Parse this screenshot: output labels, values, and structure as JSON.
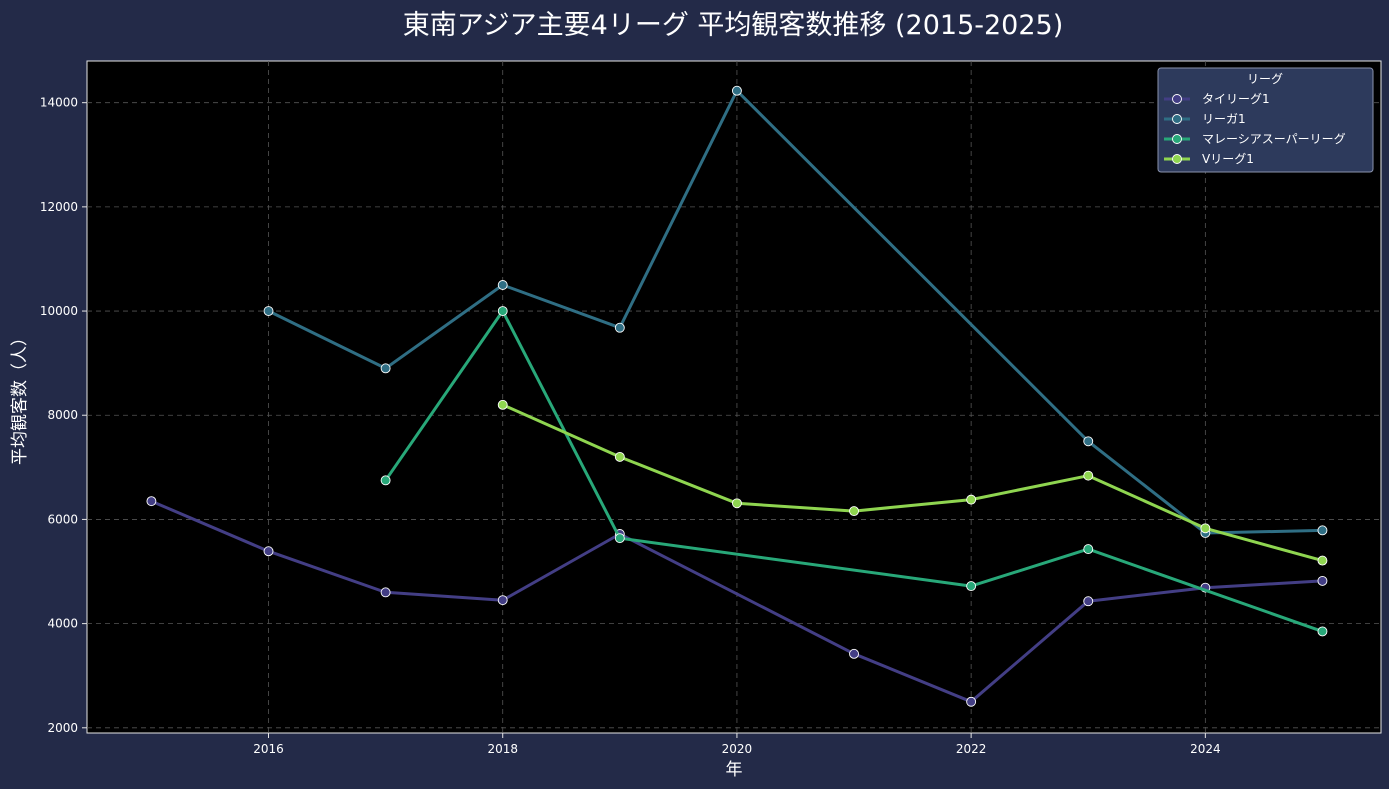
{
  "chart_data": {
    "type": "line",
    "title": "東南アジア主要4リーグ 平均観客数推移 (2015-2025)",
    "xlabel": "年",
    "ylabel": "平均観客数（人）",
    "xlim": [
      2014.45,
      2025.5
    ],
    "ylim": [
      1900,
      14800
    ],
    "xticks": [
      2016,
      2018,
      2020,
      2022,
      2024
    ],
    "yticks": [
      2000,
      4000,
      6000,
      8000,
      10000,
      12000,
      14000
    ],
    "grid": true,
    "legend": {
      "title": "リーグ",
      "placement": "top-right"
    },
    "series": [
      {
        "name": "タイリーグ1",
        "color": "#433e85",
        "points": [
          {
            "x": 2015,
            "y": 6350
          },
          {
            "x": 2016,
            "y": 5390
          },
          {
            "x": 2017,
            "y": 4600
          },
          {
            "x": 2018,
            "y": 4450
          },
          {
            "x": 2019,
            "y": 5720
          },
          {
            "x": 2021,
            "y": 3420
          },
          {
            "x": 2022,
            "y": 2500
          },
          {
            "x": 2023,
            "y": 4430
          },
          {
            "x": 2024,
            "y": 4690
          },
          {
            "x": 2025,
            "y": 4820
          }
        ]
      },
      {
        "name": "リーガ1",
        "color": "#2f6e84",
        "points": [
          {
            "x": 2016,
            "y": 10000
          },
          {
            "x": 2017,
            "y": 8900
          },
          {
            "x": 2018,
            "y": 10500
          },
          {
            "x": 2019,
            "y": 9680
          },
          {
            "x": 2020,
            "y": 14230
          },
          {
            "x": 2023,
            "y": 7500
          },
          {
            "x": 2024,
            "y": 5740
          },
          {
            "x": 2025,
            "y": 5790
          }
        ]
      },
      {
        "name": "マレーシアスーパーリーグ",
        "color": "#28a879",
        "points": [
          {
            "x": 2017,
            "y": 6750
          },
          {
            "x": 2018,
            "y": 10000
          },
          {
            "x": 2019,
            "y": 5640
          },
          {
            "x": 2022,
            "y": 4720
          },
          {
            "x": 2023,
            "y": 5430
          },
          {
            "x": 2025,
            "y": 3850
          }
        ]
      },
      {
        "name": "Vリーグ1",
        "color": "#8fd550",
        "points": [
          {
            "x": 2018,
            "y": 8200
          },
          {
            "x": 2019,
            "y": 7200
          },
          {
            "x": 2020,
            "y": 6310
          },
          {
            "x": 2021,
            "y": 6160
          },
          {
            "x": 2022,
            "y": 6380
          },
          {
            "x": 2023,
            "y": 6840
          },
          {
            "x": 2024,
            "y": 5830
          },
          {
            "x": 2025,
            "y": 5210
          }
        ]
      }
    ]
  }
}
